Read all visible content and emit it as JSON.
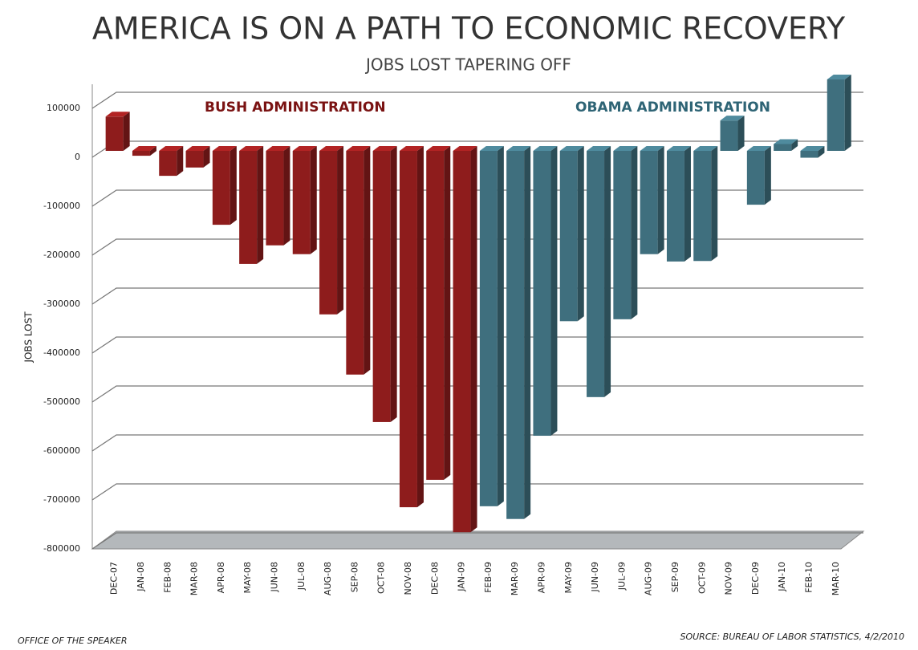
{
  "chart_data": {
    "type": "bar3d",
    "title": "AMERICA IS ON A PATH TO ECONOMIC RECOVERY",
    "subtitle": "JOBS LOST TAPERING OFF",
    "y_label": "JOBS LOST",
    "footer_left": "OFFICE OF THE SPEAKER",
    "footer_right": "SOURCE: BUREAU OF LABOR STATISTICS, 4/2/2010",
    "categories": [
      "DEC-07",
      "JAN-08",
      "FEB-08",
      "MAR-08",
      "APR-08",
      "MAY-08",
      "JUN-08",
      "JUL-08",
      "AUG-08",
      "SEP-08",
      "OCT-08",
      "NOV-08",
      "DEC-08",
      "JAN-09",
      "FEB-09",
      "MAR-09",
      "APR-09",
      "MAY-09",
      "JUN-09",
      "JUL-09",
      "AUG-09",
      "SEP-09",
      "OCT-09",
      "NOV-09",
      "DEC-09",
      "JAN-10",
      "FEB-10",
      "MAR-10"
    ],
    "series": [
      {
        "name": "BUSH ADMINISTRATION",
        "color": "#8e1c1c",
        "values": [
          70000,
          -10000,
          -51000,
          -34000,
          -151000,
          -231000,
          -193000,
          -211000,
          -334000,
          -457000,
          -554000,
          -728000,
          -672000,
          -779000,
          null,
          null,
          null,
          null,
          null,
          null,
          null,
          null,
          null,
          null,
          null,
          null,
          null,
          null
        ]
      },
      {
        "name": "OBAMA ADMINISTRATION",
        "color": "#3f6f7e",
        "values": [
          null,
          null,
          null,
          null,
          null,
          null,
          null,
          null,
          null,
          null,
          null,
          null,
          null,
          null,
          -726000,
          -752000,
          -582000,
          -348000,
          -503000,
          -344000,
          -211000,
          -226000,
          -225000,
          62000,
          -110000,
          14000,
          -14000,
          146000
        ]
      }
    ],
    "ylim": [
      -800000,
      100000
    ],
    "yticks": [
      -800000,
      -700000,
      -600000,
      -500000,
      -400000,
      -300000,
      -200000,
      -100000,
      0,
      100000
    ],
    "grid": true
  }
}
